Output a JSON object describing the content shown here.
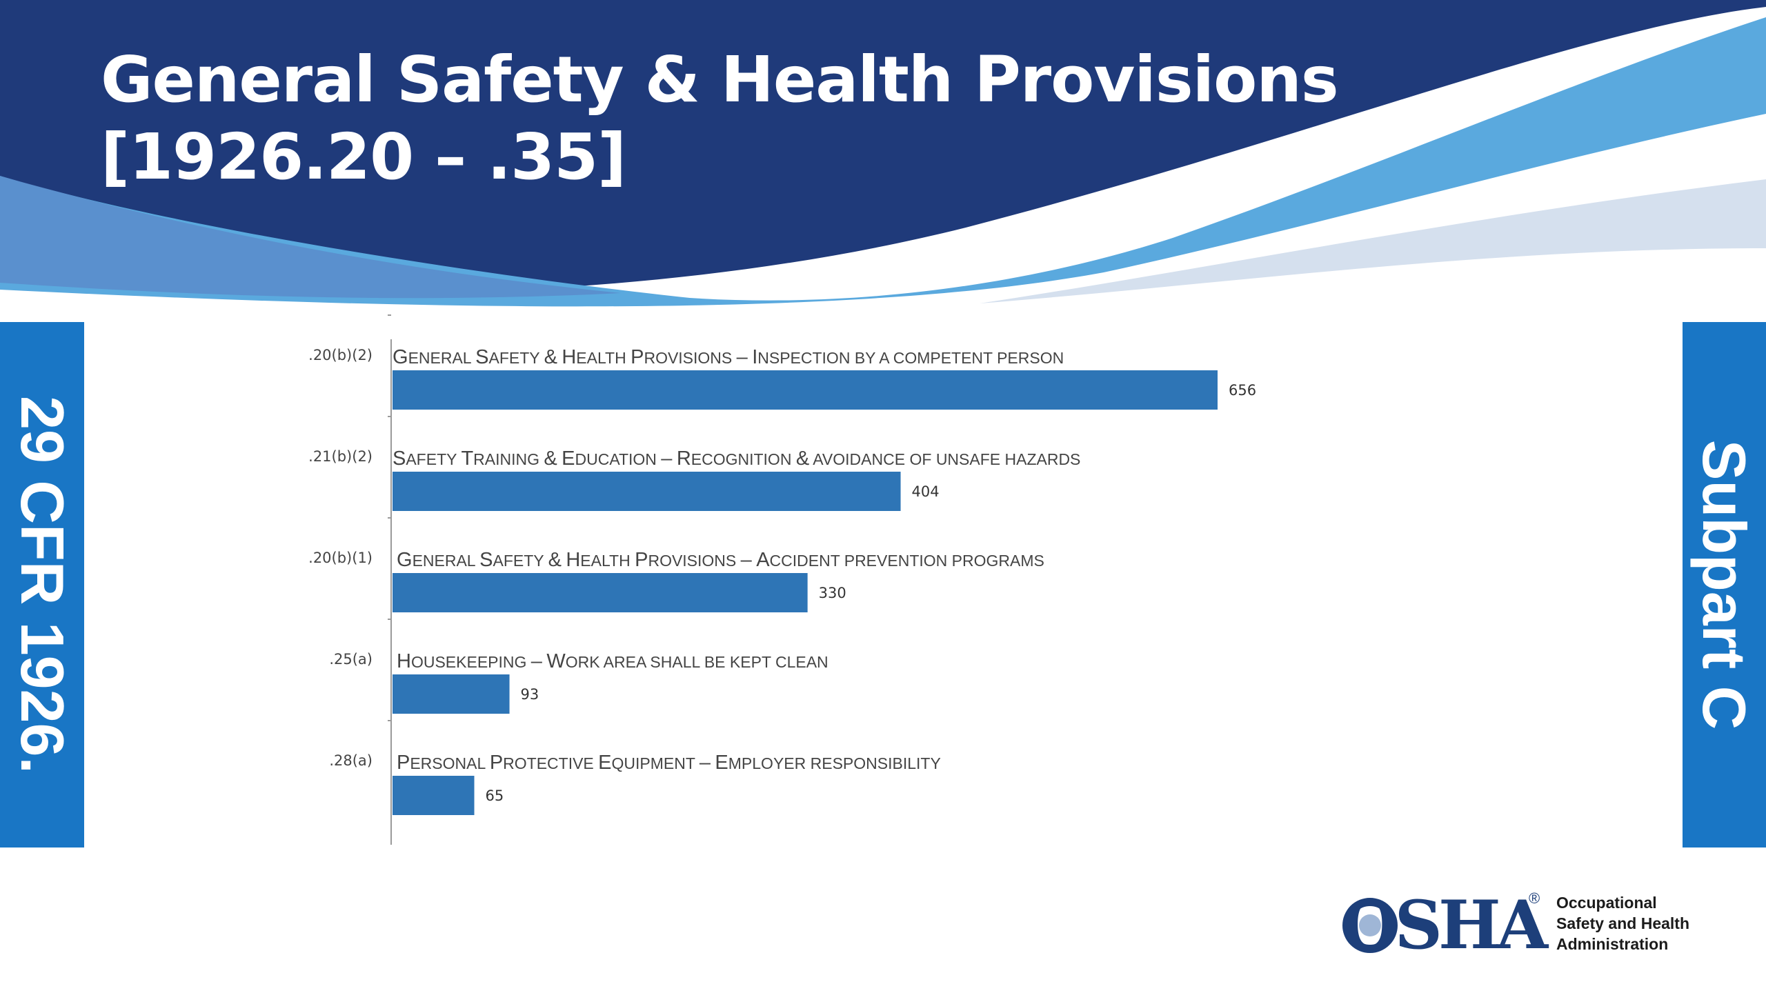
{
  "slide": {
    "title_line_1": "General Safety & Health Provisions",
    "title_line_2": "[1926.20 – .35]",
    "left_side_label": "29 CFR 1926.",
    "right_side_label": "Subpart C"
  },
  "colors": {
    "banner_dark": "#1f3a7a",
    "banner_light": "#5aa9de",
    "banner_pale": "#d5e0ee",
    "side_bar": "#1976c5",
    "bar": "#2e75b6"
  },
  "logo": {
    "mark": "OSHA",
    "registered": "®",
    "line_1": "Occupational",
    "line_2": "Safety and Health",
    "line_3": "Administration"
  },
  "chart_data": {
    "type": "bar",
    "orientation": "horizontal",
    "categories": [
      ".20(b)(2)",
      ".21(b)(2)",
      ".20(b)(1)",
      ".25(a)",
      ".28(a)"
    ],
    "descriptions": [
      "General Safety & Health Provisions – Inspection by a competent person",
      "Safety Training & Education – Recognition & avoidance of unsafe hazards",
      "General Safety & Health Provisions – Accident prevention programs",
      "Housekeeping – Work area shall be kept clean",
      "Personal Protective Equipment – Employer responsibility"
    ],
    "values": [
      656,
      404,
      330,
      93,
      65
    ],
    "xlim": [
      0,
      1100
    ],
    "grid": false,
    "legend": "none",
    "data_labels": true
  }
}
